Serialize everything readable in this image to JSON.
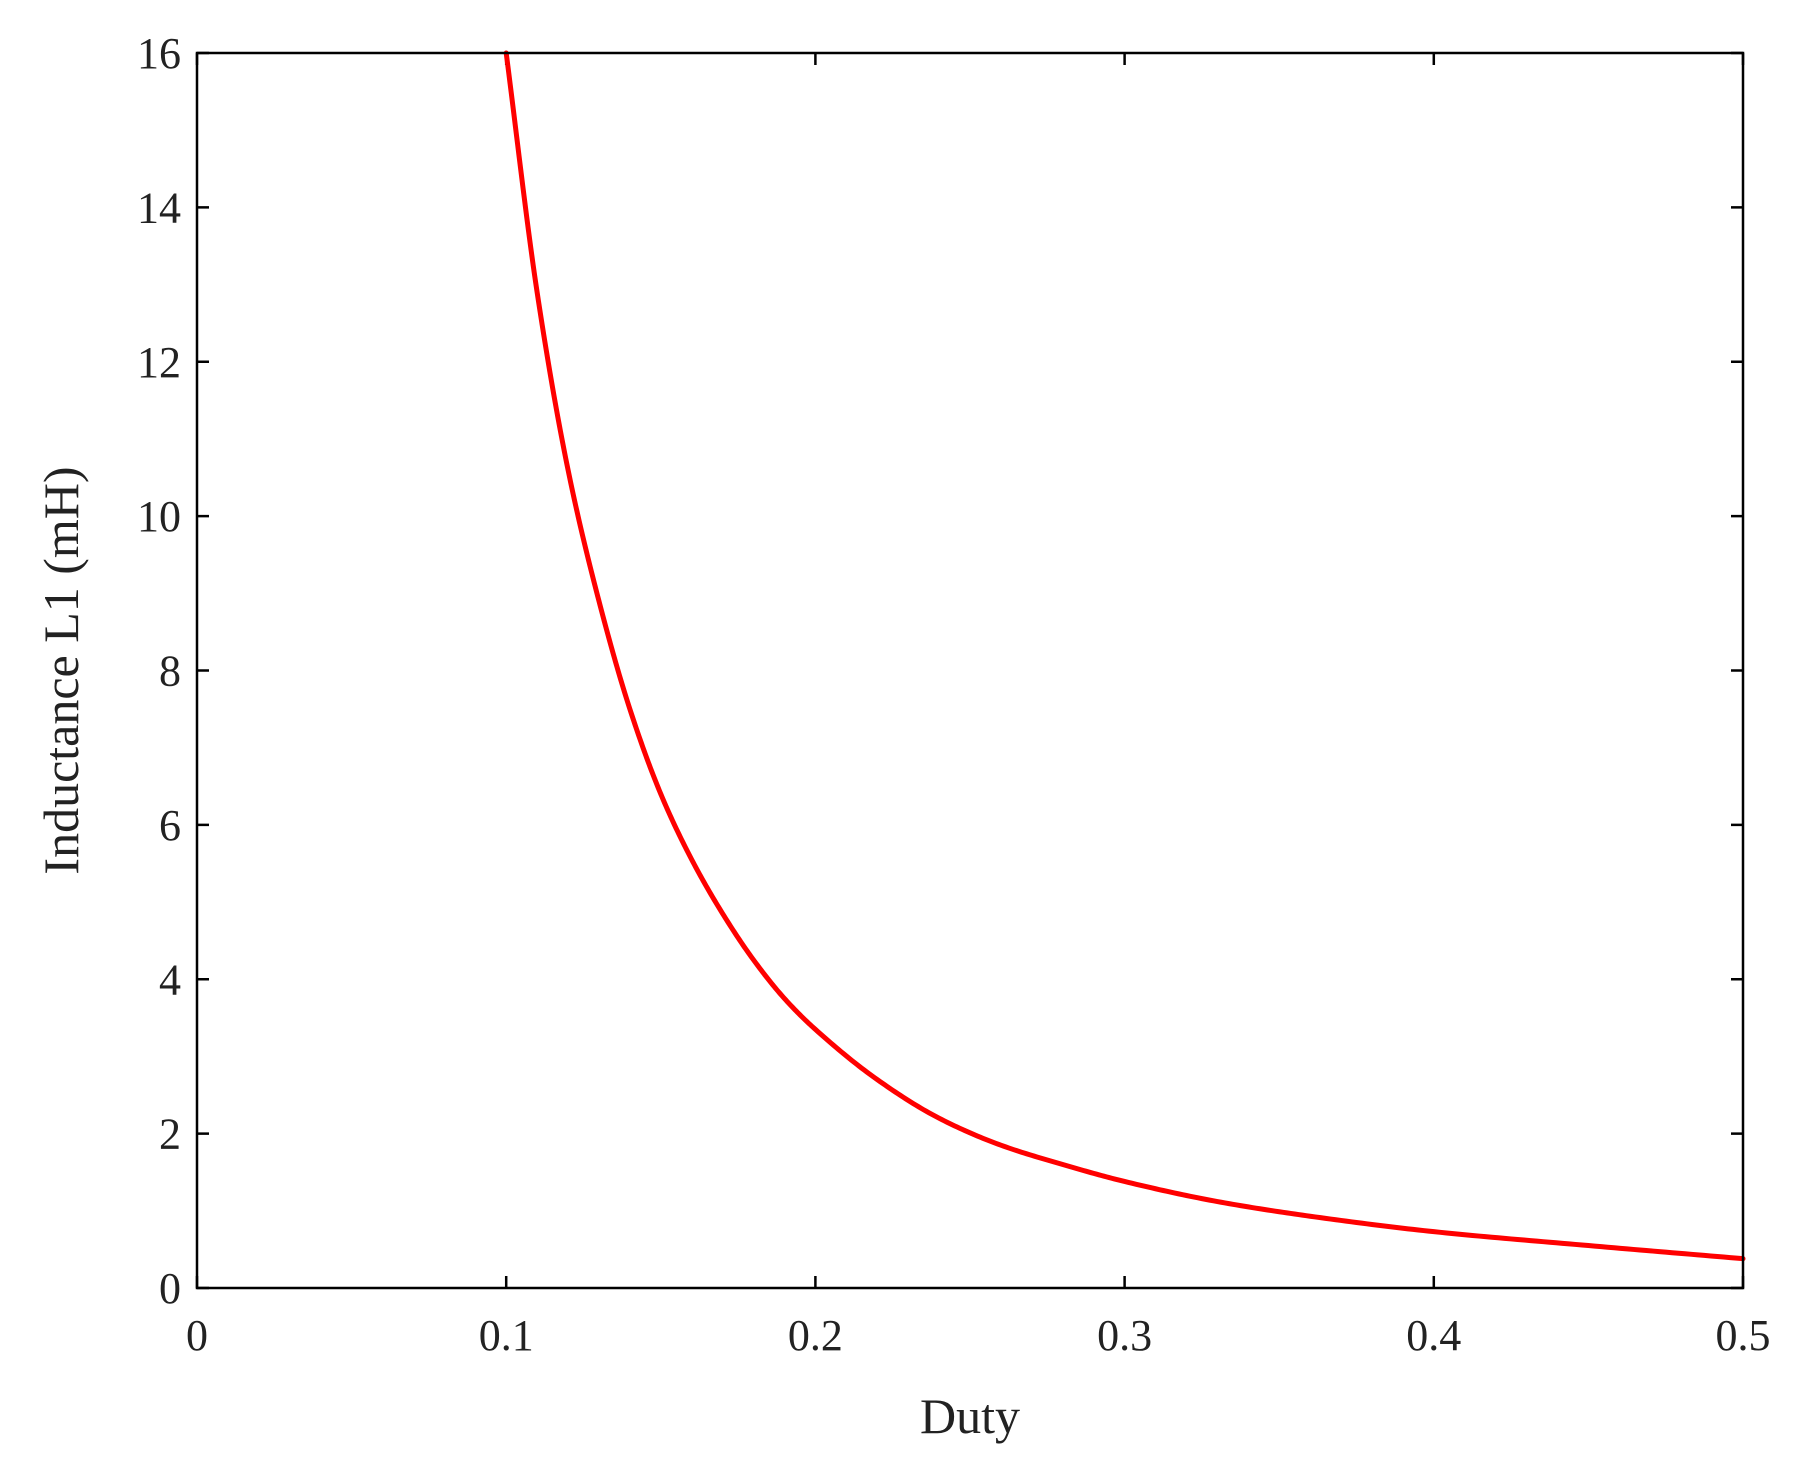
{
  "chart_data": {
    "type": "line",
    "title": "",
    "xlabel": "Duty",
    "ylabel": "Inductance L1 (mH)",
    "xlim": [
      0,
      0.5
    ],
    "ylim": [
      0,
      16
    ],
    "x_ticks": [
      {
        "value": 0,
        "label": "0"
      },
      {
        "value": 0.1,
        "label": "0.1"
      },
      {
        "value": 0.2,
        "label": "0.2"
      },
      {
        "value": 0.3,
        "label": "0.3"
      },
      {
        "value": 0.4,
        "label": "0.4"
      },
      {
        "value": 0.5,
        "label": "0.5"
      }
    ],
    "y_ticks": [
      {
        "value": 0,
        "label": "0"
      },
      {
        "value": 2,
        "label": "2"
      },
      {
        "value": 4,
        "label": "4"
      },
      {
        "value": 6,
        "label": "6"
      },
      {
        "value": 8,
        "label": "8"
      },
      {
        "value": 10,
        "label": "10"
      },
      {
        "value": 12,
        "label": "12"
      },
      {
        "value": 14,
        "label": "14"
      },
      {
        "value": 16,
        "label": "16"
      }
    ],
    "grid": false,
    "legend": "none",
    "series": [
      {
        "color": "#ff0000",
        "x": [
          0.1,
          0.11,
          0.12,
          0.13,
          0.14,
          0.15,
          0.16,
          0.17,
          0.18,
          0.19,
          0.2,
          0.22,
          0.24,
          0.26,
          0.28,
          0.3,
          0.33,
          0.36,
          0.4,
          0.45,
          0.5
        ],
        "y": [
          16.0,
          12.9,
          10.6,
          8.9,
          7.5,
          6.4,
          5.55,
          4.85,
          4.25,
          3.75,
          3.35,
          2.7,
          2.2,
          1.85,
          1.6,
          1.38,
          1.12,
          0.93,
          0.73,
          0.55,
          0.38
        ]
      }
    ]
  }
}
